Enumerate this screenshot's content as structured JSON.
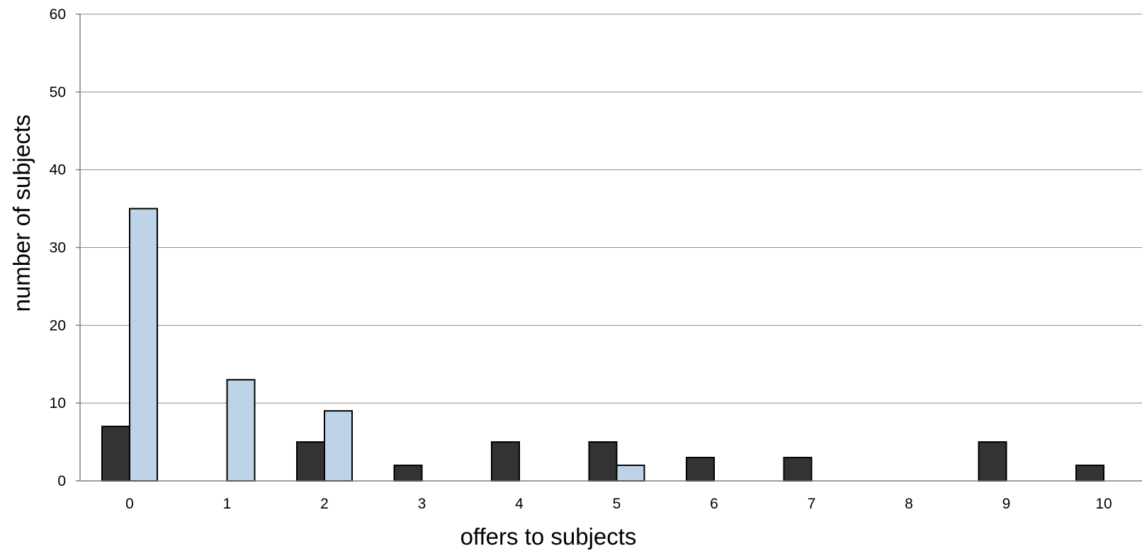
{
  "chart_data": {
    "type": "bar",
    "title": "",
    "xlabel": "offers to subjects",
    "ylabel": "number of subjects",
    "categories": [
      "0",
      "1",
      "2",
      "3",
      "4",
      "5",
      "6",
      "7",
      "8",
      "9",
      "10"
    ],
    "series": [
      {
        "values": [
          7,
          0,
          5,
          2,
          5,
          5,
          3,
          3,
          0,
          5,
          2
        ],
        "color": "#333333"
      },
      {
        "values": [
          35,
          13,
          9,
          0,
          0,
          2,
          0,
          0,
          0,
          0,
          0
        ],
        "color": "#bed3e8"
      }
    ],
    "ylim": [
      0,
      60
    ],
    "yticks": [
      0,
      10,
      20,
      30,
      40,
      50,
      60
    ],
    "grid": true,
    "legend": "none"
  }
}
